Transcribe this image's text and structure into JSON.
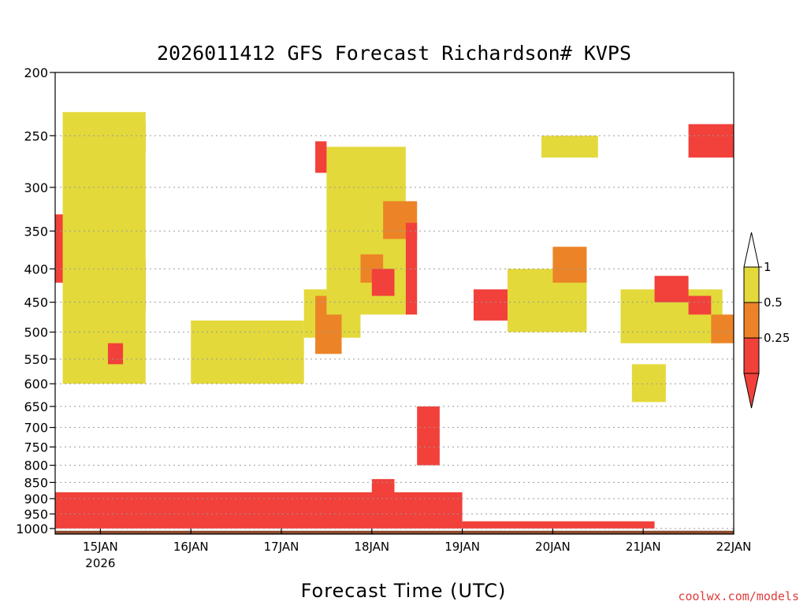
{
  "chart_data": {
    "type": "heatmap",
    "title": "2026011412 GFS Forecast Richardson# KVPS",
    "xlabel": "Forecast Time (UTC)",
    "ylabel": "",
    "watermark": "coolwx.com/models",
    "y_axis": {
      "scale": "log",
      "min": 1020,
      "max": 200,
      "inverted": true,
      "ticks": [
        200,
        250,
        300,
        350,
        400,
        450,
        500,
        550,
        600,
        650,
        700,
        750,
        800,
        850,
        900,
        950,
        1000
      ],
      "dotted_gridlines": [
        250,
        300,
        350,
        400,
        450,
        500,
        550,
        600,
        650,
        700,
        750,
        800,
        850,
        900,
        950,
        1000
      ]
    },
    "x_axis": {
      "start": "2026-01-14T12:00Z",
      "end": "2026-01-22T00:00Z",
      "tick_labels": [
        {
          "time": "2026-01-15T00:00Z",
          "label": "15JAN",
          "sublabel": "2026"
        },
        {
          "time": "2026-01-16T00:00Z",
          "label": "16JAN"
        },
        {
          "time": "2026-01-17T00:00Z",
          "label": "17JAN"
        },
        {
          "time": "2026-01-18T00:00Z",
          "label": "18JAN"
        },
        {
          "time": "2026-01-19T00:00Z",
          "label": "19JAN"
        },
        {
          "time": "2026-01-20T00:00Z",
          "label": "20JAN"
        },
        {
          "time": "2026-01-21T00:00Z",
          "label": "21JAN"
        },
        {
          "time": "2026-01-22T00:00Z",
          "label": "22JAN"
        }
      ]
    },
    "legend": {
      "placement": "right",
      "levels": [
        "1",
        "0.5",
        "0.25"
      ],
      "bins": [
        {
          "range": "0.5-1",
          "color": "#e3d93a"
        },
        {
          "range": "0.25-0.5",
          "color": "#ec8427"
        },
        {
          "range": "<0.25",
          "color": "#f2403a"
        }
      ]
    },
    "colors": {
      "yellow": "#e3d93a",
      "orange": "#ec8427",
      "red": "#f2403a",
      "ground": "#8b4a2b"
    },
    "regions": [
      {
        "bin": "red",
        "t0": "2026-01-14T12:00Z",
        "t1": "2026-01-19T00:00Z",
        "p0": 1000,
        "p1": 880
      },
      {
        "bin": "red",
        "t0": "2026-01-19T00:00Z",
        "t1": "2026-01-21T03:00Z",
        "p0": 1000,
        "p1": 975
      },
      {
        "bin": "red",
        "t0": "2026-01-14T12:00Z",
        "t1": "2026-01-15T06:00Z",
        "p0": 420,
        "p1": 330
      },
      {
        "bin": "red",
        "t0": "2026-01-15T06:00Z",
        "t1": "2026-01-15T12:00Z",
        "p0": 460,
        "p1": 390
      },
      {
        "bin": "orange",
        "t0": "2026-01-14T22:00Z",
        "t1": "2026-01-15T06:00Z",
        "p0": 345,
        "p1": 285
      },
      {
        "bin": "orange",
        "t0": "2026-01-15T06:00Z",
        "t1": "2026-01-15T12:00Z",
        "p0": 265,
        "p1": 240
      },
      {
        "bin": "yellow",
        "t0": "2026-01-14T14:00Z",
        "t1": "2026-01-15T12:00Z",
        "p0": 600,
        "p1": 230
      },
      {
        "bin": "red",
        "t0": "2026-01-15T02:00Z",
        "t1": "2026-01-15T06:00Z",
        "p0": 560,
        "p1": 520
      },
      {
        "bin": "orange",
        "t0": "2026-01-16T03:00Z",
        "t1": "2026-01-16T20:00Z",
        "p0": 540,
        "p1": 510
      },
      {
        "bin": "yellow",
        "t0": "2026-01-16T00:00Z",
        "t1": "2026-01-17T06:00Z",
        "p0": 600,
        "p1": 480
      },
      {
        "bin": "yellow",
        "t0": "2026-01-17T06:00Z",
        "t1": "2026-01-17T21:00Z",
        "p0": 510,
        "p1": 430
      },
      {
        "bin": "orange",
        "t0": "2026-01-17T09:00Z",
        "t1": "2026-01-17T16:00Z",
        "p0": 540,
        "p1": 440
      },
      {
        "bin": "yellow",
        "t0": "2026-01-17T12:00Z",
        "t1": "2026-01-18T09:00Z",
        "p0": 470,
        "p1": 260
      },
      {
        "bin": "orange",
        "t0": "2026-01-17T21:00Z",
        "t1": "2026-01-18T03:00Z",
        "p0": 420,
        "p1": 380
      },
      {
        "bin": "red",
        "t0": "2026-01-18T00:00Z",
        "t1": "2026-01-18T06:00Z",
        "p0": 440,
        "p1": 400
      },
      {
        "bin": "orange",
        "t0": "2026-01-18T03:00Z",
        "t1": "2026-01-18T12:00Z",
        "p0": 360,
        "p1": 315
      },
      {
        "bin": "red",
        "t0": "2026-01-17T09:00Z",
        "t1": "2026-01-17T12:00Z",
        "p0": 285,
        "p1": 255
      },
      {
        "bin": "red",
        "t0": "2026-01-18T09:00Z",
        "t1": "2026-01-18T12:00Z",
        "p0": 470,
        "p1": 340
      },
      {
        "bin": "red",
        "t0": "2026-01-18T12:00Z",
        "t1": "2026-01-18T18:00Z",
        "p0": 800,
        "p1": 650
      },
      {
        "bin": "red",
        "t0": "2026-01-18T00:00Z",
        "t1": "2026-01-18T06:00Z",
        "p0": 900,
        "p1": 840
      },
      {
        "bin": "yellow",
        "t0": "2026-01-19T12:00Z",
        "t1": "2026-01-20T09:00Z",
        "p0": 500,
        "p1": 400
      },
      {
        "bin": "red",
        "t0": "2026-01-19T03:00Z",
        "t1": "2026-01-19T12:00Z",
        "p0": 480,
        "p1": 430
      },
      {
        "bin": "orange",
        "t0": "2026-01-20T00:00Z",
        "t1": "2026-01-20T09:00Z",
        "p0": 420,
        "p1": 370
      },
      {
        "bin": "yellow",
        "t0": "2026-01-19T21:00Z",
        "t1": "2026-01-20T12:00Z",
        "p0": 270,
        "p1": 250
      },
      {
        "bin": "yellow",
        "t0": "2026-01-20T18:00Z",
        "t1": "2026-01-21T21:00Z",
        "p0": 520,
        "p1": 430
      },
      {
        "bin": "red",
        "t0": "2026-01-21T03:00Z",
        "t1": "2026-01-21T12:00Z",
        "p0": 450,
        "p1": 410
      },
      {
        "bin": "red",
        "t0": "2026-01-21T12:00Z",
        "t1": "2026-01-21T18:00Z",
        "p0": 470,
        "p1": 440
      },
      {
        "bin": "orange",
        "t0": "2026-01-21T18:00Z",
        "t1": "2026-01-22T00:00Z",
        "p0": 520,
        "p1": 470
      },
      {
        "bin": "red",
        "t0": "2026-01-21T12:00Z",
        "t1": "2026-01-22T00:00Z",
        "p0": 270,
        "p1": 240
      },
      {
        "bin": "yellow",
        "t0": "2026-01-20T21:00Z",
        "t1": "2026-01-21T06:00Z",
        "p0": 640,
        "p1": 560
      }
    ]
  }
}
